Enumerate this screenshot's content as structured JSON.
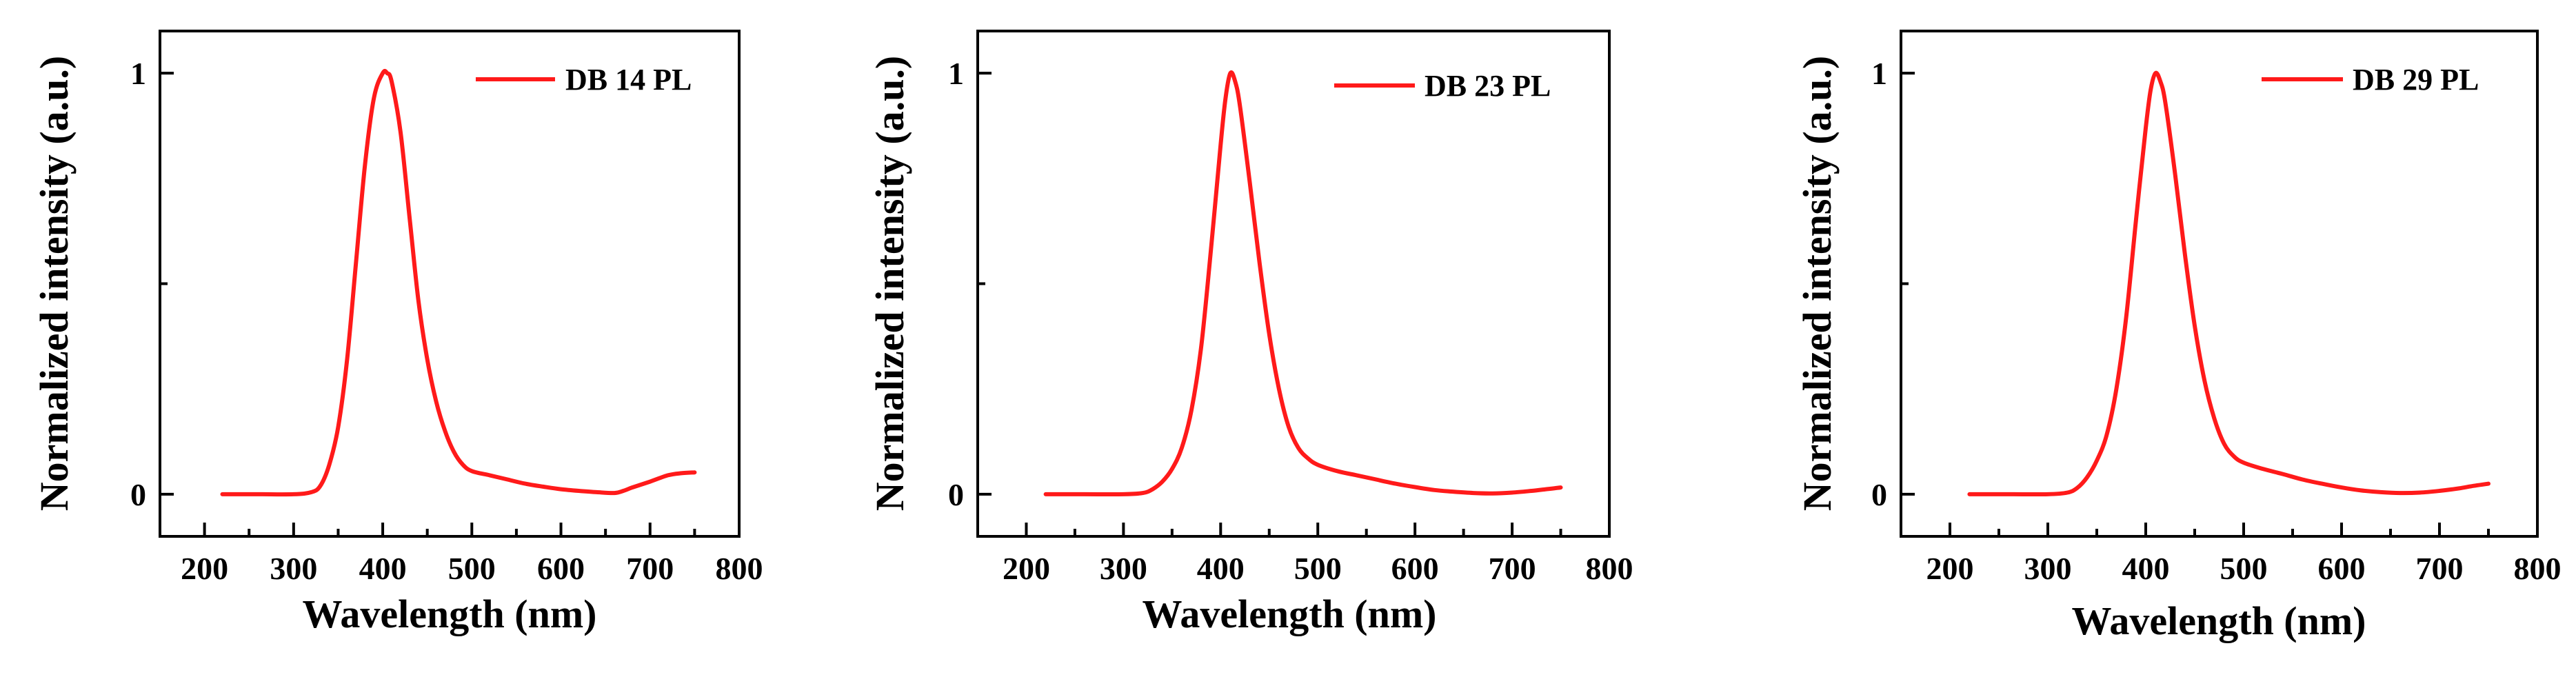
{
  "chart_data": [
    {
      "type": "line",
      "title": "",
      "xlabel": "Wavelength (nm)",
      "ylabel": "Normalized intensity (a.u.)",
      "xlim": [
        150,
        800
      ],
      "ylim": [
        -0.1,
        1.1
      ],
      "xticks": [
        200,
        300,
        400,
        500,
        600,
        700,
        800
      ],
      "yticks": [
        0,
        1
      ],
      "legend_position": "top-right",
      "color": "#ff1a1a",
      "series": [
        {
          "name": "DB 14 PL",
          "x": [
            220,
            260,
            300,
            320,
            330,
            340,
            350,
            360,
            370,
            380,
            390,
            400,
            405,
            410,
            420,
            430,
            440,
            450,
            460,
            470,
            480,
            490,
            500,
            520,
            540,
            560,
            580,
            600,
            620,
            640,
            660,
            670,
            680,
            700,
            720,
            735,
            750
          ],
          "y": [
            0,
            0,
            0,
            0.005,
            0.02,
            0.07,
            0.16,
            0.32,
            0.55,
            0.78,
            0.94,
            1.0,
            1.0,
            0.98,
            0.86,
            0.66,
            0.46,
            0.32,
            0.22,
            0.15,
            0.1,
            0.07,
            0.055,
            0.045,
            0.035,
            0.025,
            0.018,
            0.012,
            0.008,
            0.005,
            0.003,
            0.008,
            0.016,
            0.03,
            0.045,
            0.05,
            0.052
          ]
        },
        {
          "name": "DB 23 PL",
          "x": [
            220,
            260,
            300,
            320,
            330,
            340,
            350,
            360,
            370,
            380,
            390,
            400,
            405,
            410,
            415,
            420,
            430,
            440,
            450,
            460,
            470,
            480,
            490,
            500,
            520,
            540,
            560,
            580,
            600,
            620,
            640,
            660,
            680,
            700,
            720,
            735,
            750
          ],
          "y": [
            0,
            0,
            0,
            0.003,
            0.012,
            0.03,
            0.06,
            0.11,
            0.2,
            0.35,
            0.58,
            0.83,
            0.94,
            1.0,
            0.98,
            0.92,
            0.74,
            0.55,
            0.38,
            0.25,
            0.16,
            0.11,
            0.085,
            0.07,
            0.055,
            0.045,
            0.035,
            0.025,
            0.017,
            0.01,
            0.006,
            0.003,
            0.002,
            0.004,
            0.008,
            0.012,
            0.016
          ]
        },
        {
          "name": "DB 29 PL",
          "x": [
            220,
            260,
            300,
            320,
            330,
            340,
            350,
            360,
            370,
            380,
            390,
            400,
            405,
            410,
            415,
            420,
            430,
            440,
            450,
            460,
            470,
            480,
            490,
            500,
            520,
            540,
            560,
            580,
            600,
            620,
            640,
            660,
            680,
            700,
            720,
            735,
            750
          ],
          "y": [
            0,
            0,
            0,
            0.004,
            0.015,
            0.04,
            0.08,
            0.14,
            0.25,
            0.42,
            0.65,
            0.87,
            0.96,
            1.0,
            0.98,
            0.93,
            0.76,
            0.57,
            0.4,
            0.27,
            0.18,
            0.12,
            0.09,
            0.075,
            0.06,
            0.048,
            0.035,
            0.025,
            0.016,
            0.009,
            0.005,
            0.003,
            0.004,
            0.008,
            0.014,
            0.02,
            0.025
          ]
        }
      ]
    }
  ]
}
